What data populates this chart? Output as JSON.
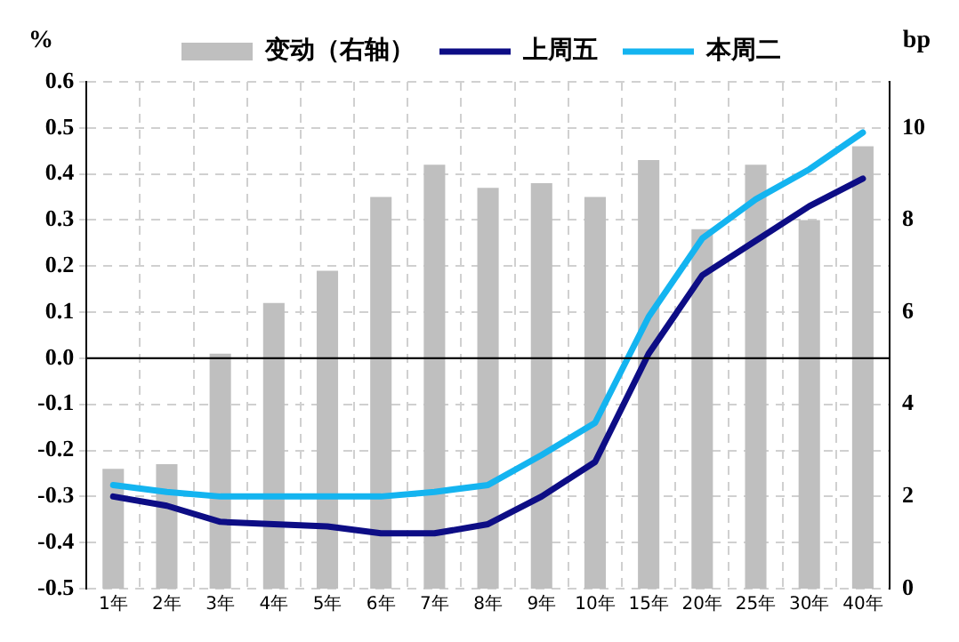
{
  "chart_data": {
    "type": "bar",
    "ylabel": "%",
    "y2label": "bp",
    "categories": [
      "1年",
      "2年",
      "3年",
      "4年",
      "5年",
      "6年",
      "7年",
      "8年",
      "9年",
      "10年",
      "15年",
      "20年",
      "25年",
      "30年",
      "40年"
    ],
    "series": [
      {
        "name": "变动（右轴）",
        "axis": "y2",
        "color": "#bfbfbf",
        "values": [
          2.6,
          2.7,
          5.1,
          6.2,
          6.9,
          8.5,
          9.2,
          8.7,
          8.8,
          8.5,
          9.3,
          7.8,
          9.2,
          8.0,
          9.6
        ]
      },
      {
        "name": "上周五",
        "type": "line",
        "color": "#0d0d85",
        "values": [
          -0.3,
          -0.32,
          -0.355,
          -0.36,
          -0.365,
          -0.38,
          -0.38,
          -0.36,
          -0.3,
          -0.225,
          0.01,
          0.18,
          0.255,
          0.33,
          0.39
        ]
      },
      {
        "name": "本周二",
        "type": "line",
        "color": "#14b4f0",
        "values": [
          -0.275,
          -0.29,
          -0.3,
          -0.3,
          -0.3,
          -0.3,
          -0.29,
          -0.275,
          -0.21,
          -0.14,
          0.09,
          0.26,
          0.345,
          0.41,
          0.49
        ]
      }
    ],
    "ylim": [
      -0.5,
      0.6
    ],
    "yticks": [
      {
        "value": -0.5,
        "label": "-0.5"
      },
      {
        "value": -0.4,
        "label": "-0.4"
      },
      {
        "value": -0.3,
        "label": "-0.3"
      },
      {
        "value": -0.2,
        "label": "-0.2"
      },
      {
        "value": -0.1,
        "label": "-0.1"
      },
      {
        "value": 0,
        "label": "0.0"
      },
      {
        "value": 0.1,
        "label": "0.1"
      },
      {
        "value": 0.2,
        "label": "0.2"
      },
      {
        "value": 0.3,
        "label": "0.3"
      },
      {
        "value": 0.4,
        "label": "0.4"
      },
      {
        "value": 0.5,
        "label": "0.5"
      },
      {
        "value": 0.6,
        "label": "0.6"
      }
    ],
    "y2lim": [
      0,
      11
    ],
    "y2ticks": [
      0,
      2,
      4,
      6,
      8,
      10
    ],
    "grid": true,
    "legend": "top",
    "line_style": "solid",
    "marker": "none"
  }
}
